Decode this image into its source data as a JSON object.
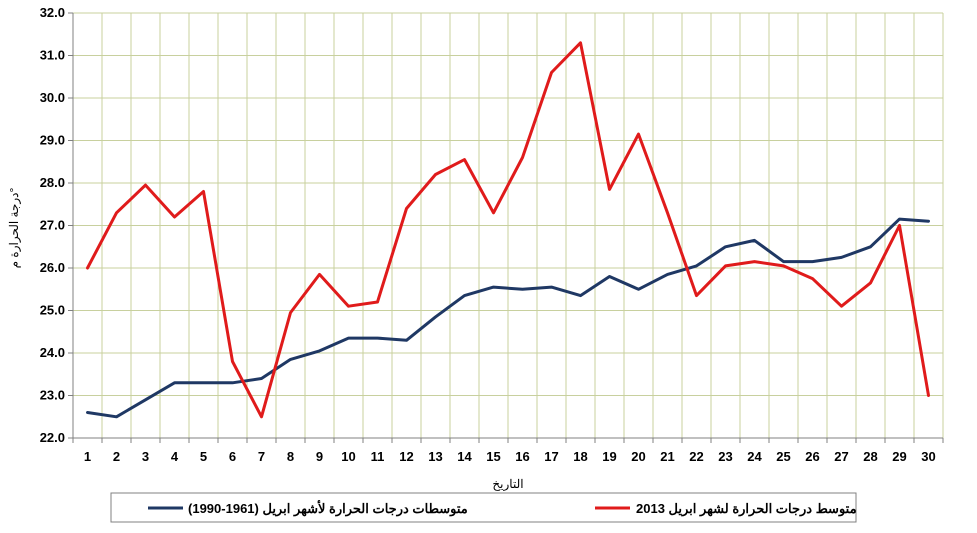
{
  "chart_data": {
    "type": "line",
    "title": "",
    "xlabel": "التاريخ",
    "ylabel": "درجة الحرارة م°",
    "x": [
      "1",
      "2",
      "3",
      "4",
      "5",
      "6",
      "7",
      "8",
      "9",
      "10",
      "11",
      "12",
      "13",
      "14",
      "15",
      "16",
      "17",
      "18",
      "19",
      "20",
      "21",
      "22",
      "23",
      "24",
      "25",
      "26",
      "27",
      "28",
      "29",
      "30"
    ],
    "ylim": [
      22.0,
      32.0
    ],
    "yticks": [
      "22.0",
      "23.0",
      "24.0",
      "25.0",
      "26.0",
      "27.0",
      "28.0",
      "29.0",
      "30.0",
      "31.0",
      "32.0"
    ],
    "grid": true,
    "legend_position": "bottom",
    "series": [
      {
        "name": "متوسطات درجات الحرارة لأشهر ابريل (1961-1990)",
        "color": "#1f3864",
        "values": [
          22.6,
          22.5,
          22.9,
          23.3,
          23.3,
          23.3,
          23.4,
          23.85,
          24.05,
          24.35,
          24.35,
          24.3,
          24.85,
          25.35,
          25.55,
          25.5,
          25.55,
          25.35,
          25.8,
          25.5,
          25.85,
          26.05,
          26.5,
          26.65,
          26.15,
          26.15,
          26.25,
          26.5,
          27.15,
          27.1
        ]
      },
      {
        "name": "متوسط درجات الحرارة لشهر ابريل 2013",
        "color": "#e01b1b",
        "values": [
          26.0,
          27.3,
          27.95,
          27.2,
          27.8,
          23.8,
          22.5,
          24.95,
          25.85,
          25.1,
          25.2,
          27.4,
          28.2,
          28.55,
          27.3,
          28.6,
          30.6,
          31.3,
          27.85,
          29.15,
          27.3,
          25.35,
          26.05,
          26.15,
          26.05,
          25.75,
          25.1,
          25.65,
          27.0,
          23.0
        ]
      }
    ]
  },
  "colors": {
    "grid": "#c8d09e",
    "axis": "#808080",
    "plot_background": "#ffffff",
    "legend_border": "#808080"
  }
}
